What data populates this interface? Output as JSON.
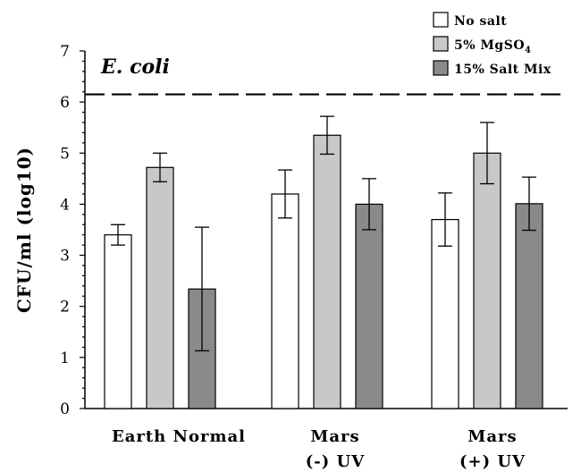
{
  "chart_data": {
    "type": "bar",
    "title": "",
    "xlabel": "",
    "ylabel": "CFU/ml (log10)",
    "ylim": [
      0,
      7
    ],
    "yticks": [
      "0",
      "1",
      "2",
      "3",
      "4",
      "5",
      "6",
      "7"
    ],
    "categories": [
      [
        "Earth Normal"
      ],
      [
        "Mars",
        "(-) UV"
      ],
      [
        "Mars",
        "(+) UV"
      ]
    ],
    "series": [
      {
        "name": "No salt",
        "legend_parts": [
          "No salt"
        ],
        "color": "#ffffff",
        "values": [
          3.4,
          4.2,
          3.7
        ],
        "errors": [
          0.2,
          0.47,
          0.52
        ]
      },
      {
        "name": "5% MgSO4",
        "legend_parts": [
          "5% MgSO",
          "4"
        ],
        "color": "#c8c8c8",
        "values": [
          4.72,
          5.35,
          5.0
        ],
        "errors": [
          0.28,
          0.37,
          0.6
        ]
      },
      {
        "name": "15% Salt Mix",
        "legend_parts": [
          "15% Salt Mix"
        ],
        "color": "#8a8a8a",
        "values": [
          2.34,
          4.0,
          4.01
        ],
        "errors": [
          1.21,
          0.5,
          0.52
        ]
      }
    ],
    "reference_line": {
      "y": 6.15,
      "style": "dashed"
    },
    "annotation": "E. coli",
    "legend_position": "top-right",
    "grid": false
  }
}
